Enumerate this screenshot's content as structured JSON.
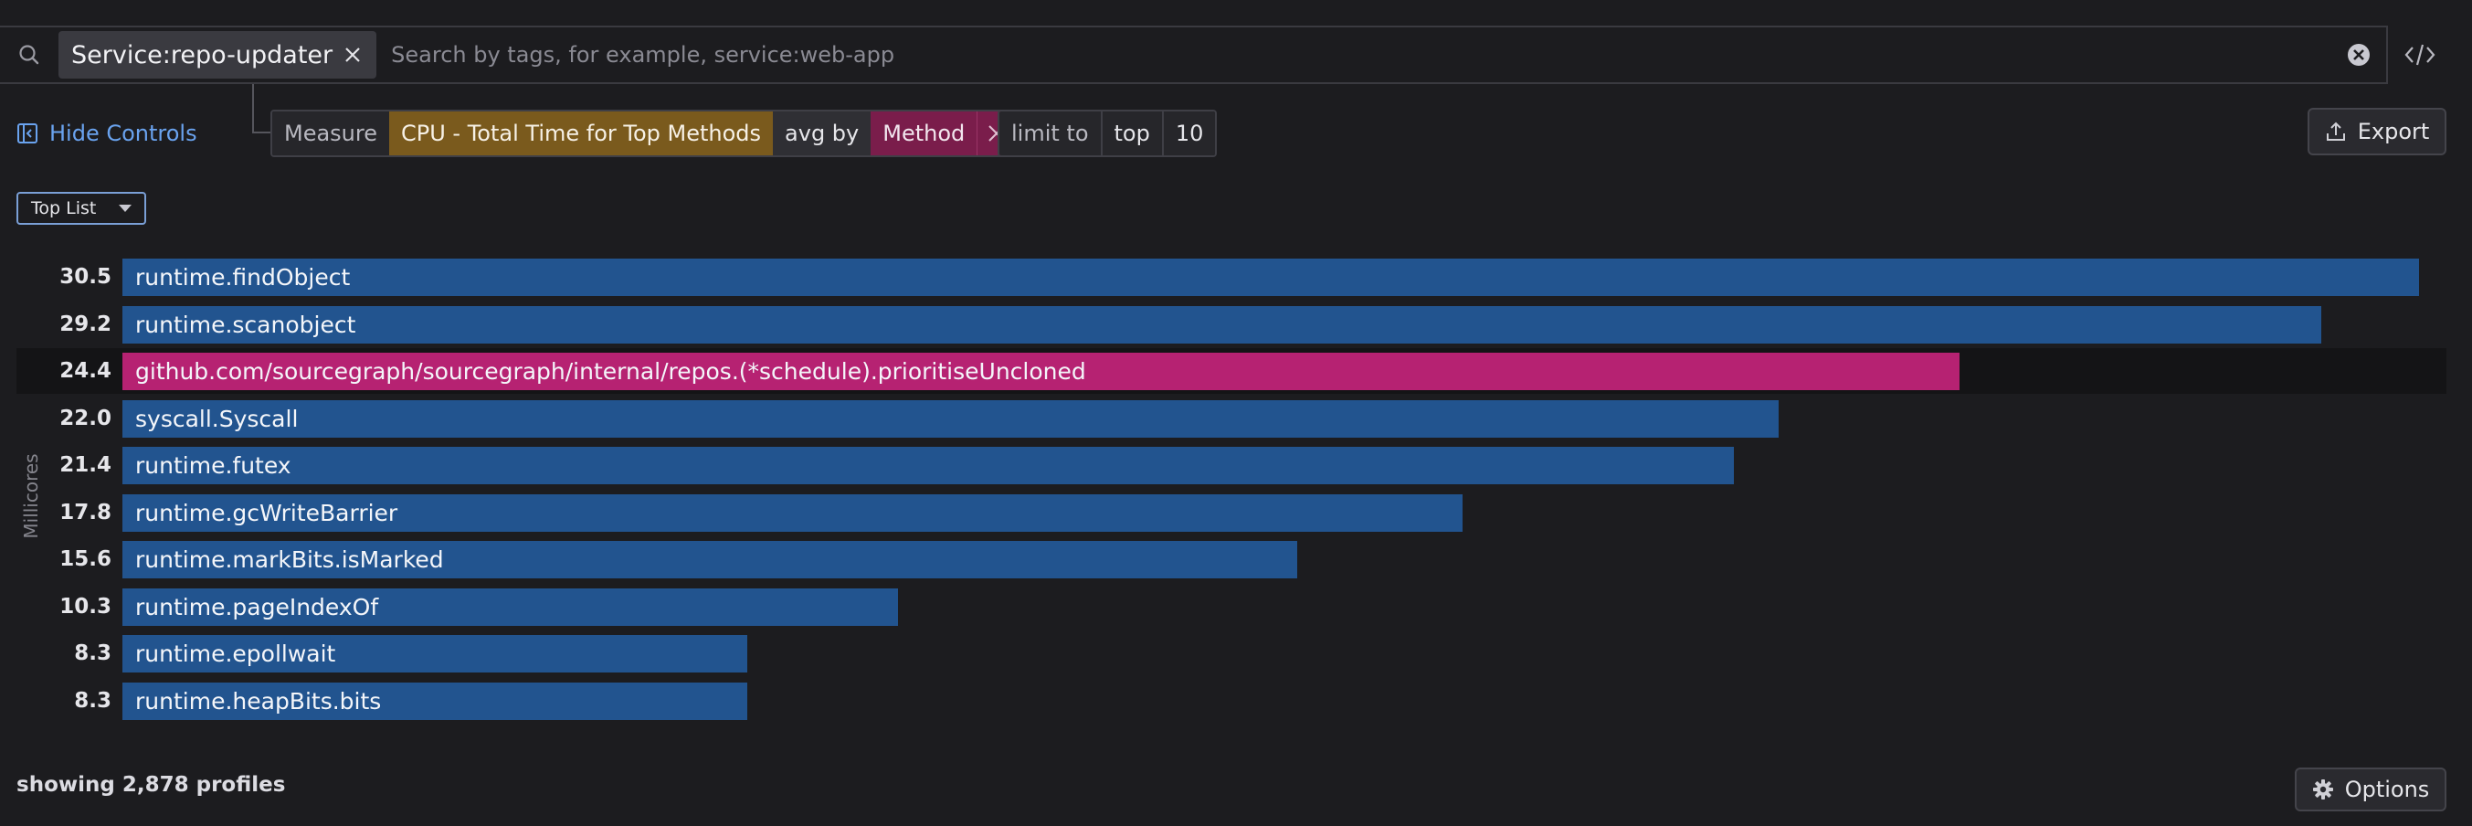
{
  "search": {
    "icon": "search-icon",
    "tag_label": "Service:repo-updater",
    "placeholder": "Search by tags, for example, service:web-app",
    "clear_icon": "clear-circle-icon",
    "code_icon": "code-brackets-icon"
  },
  "controls": {
    "hide_controls_label": "Hide Controls",
    "hide_controls_icon": "collapse-panel-icon",
    "measure_label": "Measure",
    "measure_value": "CPU - Total Time for Top Methods",
    "avg_by_label": "avg by",
    "group_value": "Method",
    "limit_label": "limit to",
    "limit_direction": "top",
    "limit_count": "10",
    "export_label": "Export",
    "viz_type": "Top List"
  },
  "chart_data": {
    "type": "bar",
    "orientation": "horizontal",
    "ylabel": "Millicores",
    "highlight_index": 2,
    "colors": {
      "bar": "#22548f",
      "highlight": "#b62272"
    },
    "categories": [
      "runtime.findObject",
      "runtime.scanobject",
      "github.com/sourcegraph/sourcegraph/internal/repos.(*schedule).prioritiseUncloned",
      "syscall.Syscall",
      "runtime.futex",
      "runtime.gcWriteBarrier",
      "runtime.markBits.isMarked",
      "runtime.pageIndexOf",
      "runtime.epollwait",
      "runtime.heapBits.bits"
    ],
    "values": [
      30.5,
      29.2,
      24.4,
      22.0,
      21.4,
      17.8,
      15.6,
      10.3,
      8.3,
      8.3
    ],
    "value_labels": [
      "30.5",
      "29.2",
      "24.4",
      "22.0",
      "21.4",
      "17.8",
      "15.6",
      "10.3",
      "8.3",
      "8.3"
    ]
  },
  "footer": {
    "status": "showing 2,878 profiles",
    "options_label": "Options",
    "options_icon": "gear-icon"
  }
}
